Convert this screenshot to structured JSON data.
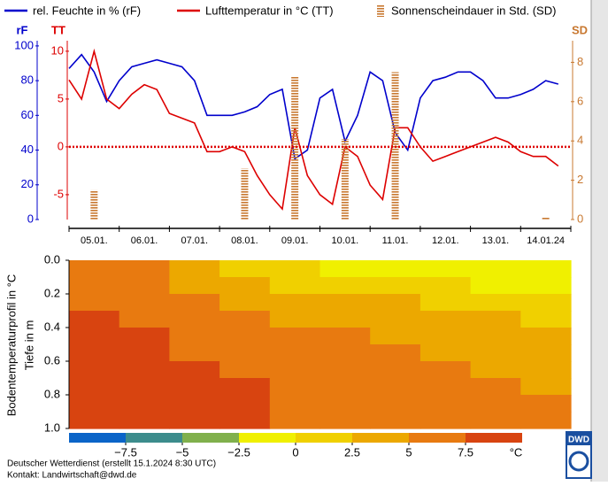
{
  "chart_data": [
    {
      "type": "line",
      "categories": [
        null,
        null,
        "05.01.",
        null,
        null,
        null,
        "06.01.",
        null,
        null,
        null,
        "07.01.",
        null,
        null,
        null,
        "08.01.",
        null,
        null,
        null,
        "09.01.",
        null,
        null,
        null,
        "10.01.",
        null,
        null,
        null,
        "11.01.",
        null,
        null,
        null,
        "12.01.",
        null,
        null,
        null,
        "13.01.",
        null,
        null,
        null,
        "14.01.24",
        null
      ],
      "y_label": "rF",
      "y2_label": "TT",
      "y3_label": "SD",
      "ylim": [
        0,
        103
      ],
      "yticks": [
        0,
        20,
        40,
        60,
        80,
        100
      ],
      "y2lim": [
        -7.6,
        11.1
      ],
      "y2ticks": [
        -5,
        0,
        5,
        10
      ],
      "y3lim": [
        0,
        9.1
      ],
      "y3ticks": [
        0,
        2,
        4,
        6,
        8
      ],
      "reference_line": 0,
      "series": [
        {
          "name": "rel. Feuchte in % (rF)",
          "color": "#0000cc",
          "kind": "line",
          "axis": "y",
          "values": [
            87,
            95,
            85,
            68,
            80,
            88,
            90,
            92,
            90,
            88,
            80,
            60,
            60,
            60,
            62,
            65,
            72,
            75,
            35,
            40,
            70,
            75,
            45,
            60,
            85,
            80,
            50,
            40,
            70,
            80,
            82,
            85,
            85,
            80,
            70,
            70,
            72,
            75,
            80,
            78
          ]
        },
        {
          "name": "Lufttemperatur in °C (TT)",
          "color": "#dd0000",
          "kind": "line",
          "axis": "y2",
          "values": [
            7,
            5,
            10,
            5,
            4,
            5.5,
            6.5,
            6,
            3.5,
            3,
            2.5,
            -0.5,
            -0.5,
            0,
            -0.5,
            -3,
            -5,
            -6.5,
            2,
            -3,
            -5,
            -6,
            0,
            -1,
            -4,
            -5.5,
            2,
            2,
            0,
            -1.5,
            -1,
            -0.5,
            0,
            0.5,
            1,
            0.5,
            -0.5,
            -1,
            -1,
            -2
          ]
        },
        {
          "name": "Sonnenscheindauer in Std. (SD)",
          "color": "#c87830",
          "kind": "bar",
          "axis": "y3",
          "values": [
            null,
            null,
            1.5,
            null,
            null,
            null,
            null,
            null,
            null,
            null,
            null,
            null,
            null,
            null,
            2.6,
            null,
            null,
            null,
            7.3,
            null,
            null,
            null,
            4.1,
            null,
            null,
            null,
            7.5,
            null,
            null,
            null,
            null,
            null,
            null,
            null,
            null,
            null,
            null,
            null,
            0.1,
            null
          ]
        }
      ]
    },
    {
      "type": "contour",
      "y_label": "Bodentemperaturprofil in °C",
      "y_label2": "Tiefe in m",
      "ylim": [
        0,
        1.0
      ],
      "yticks": [
        {
          "value": 0,
          "label": "0.0"
        },
        0.2,
        0.4,
        0.6,
        0.8,
        {
          "value": 1,
          "label": "1.0"
        }
      ],
      "z": [
        [
          6,
          5,
          3,
          1.5,
          0.5,
          -0.5,
          -0.5,
          -1,
          -1,
          -1
        ],
        [
          6.5,
          6,
          4.5,
          3,
          2,
          1.5,
          1,
          0.5,
          -0.5,
          -0.5
        ],
        [
          7,
          6.5,
          5.5,
          4.5,
          3.5,
          3,
          2.5,
          2,
          1.5,
          1
        ],
        [
          7.5,
          7,
          6,
          5.5,
          4.5,
          4,
          3.5,
          3,
          2.5,
          2
        ],
        [
          8,
          7.5,
          6.5,
          6,
          5.5,
          5,
          4.5,
          4,
          3.5,
          3
        ],
        [
          8.5,
          8,
          7,
          6.5,
          6,
          5.5,
          5,
          4.5,
          4,
          3.5
        ],
        [
          9,
          8.5,
          7.5,
          7,
          6.5,
          6,
          5.5,
          5,
          4.5,
          4
        ],
        [
          9,
          8.5,
          8,
          7.5,
          7,
          6.5,
          6,
          5.5,
          5,
          4.5
        ],
        [
          9,
          9,
          8,
          7.5,
          7,
          6.5,
          6,
          6,
          5.5,
          5
        ],
        [
          9.5,
          9,
          8.5,
          8,
          7,
          7,
          6.5,
          6,
          5.5,
          5.5
        ]
      ],
      "colorbar": {
        "bins": [
          -10,
          -7.5,
          -5,
          -2.5,
          0,
          2.5,
          5,
          7.5,
          10
        ],
        "colors": [
          "#0a64c8",
          "#3c8c8c",
          "#80b04c",
          "#f0f000",
          "#f0d000",
          "#eca800",
          "#e87a10",
          "#d84410"
        ],
        "ticks": [
          {
            "value": -7.5,
            "label": "−7.5"
          },
          {
            "value": -5,
            "label": "−5"
          },
          {
            "value": -2.5,
            "label": "−2.5"
          },
          0,
          2.5,
          5,
          7.5
        ],
        "unit": "°C"
      }
    }
  ],
  "footer": [
    "Deutscher Wetterdienst (erstellt 15.1.2024 8:30 UTC)",
    "Kontakt: Landwirtschaft@dwd.de"
  ],
  "logo": "DWD"
}
